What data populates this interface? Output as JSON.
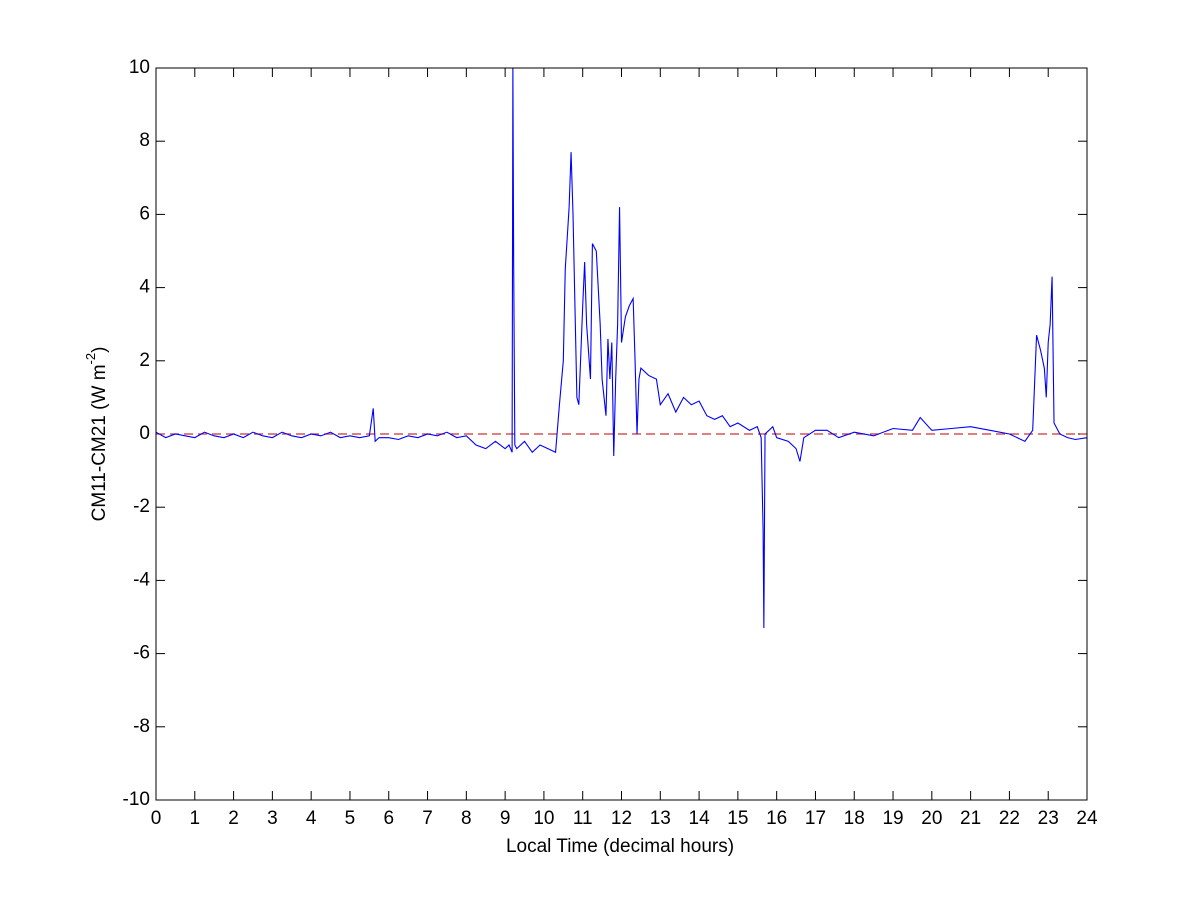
{
  "chart_data": {
    "type": "line",
    "xlabel": "Local Time (decimal hours)",
    "ylabel": {
      "text": "CM11-CM21 (W m",
      "superscript": "-2",
      "suffix": ")"
    },
    "xlim": [
      0,
      24
    ],
    "xticks": [
      0,
      1,
      2,
      3,
      4,
      5,
      6,
      7,
      8,
      9,
      10,
      11,
      12,
      13,
      14,
      15,
      16,
      17,
      18,
      19,
      20,
      21,
      22,
      23,
      24
    ],
    "ylim": [
      -10,
      10
    ],
    "yticks": [
      -10,
      -8,
      -6,
      -4,
      -2,
      0,
      2,
      4,
      6,
      8,
      10
    ],
    "grid": false,
    "reference_line": {
      "value": 0,
      "color": "#cc3333",
      "dash": true
    },
    "series": [
      {
        "name": "CM11-CM21",
        "color": "#0000ff",
        "x": [
          0,
          0.25,
          0.5,
          0.75,
          1,
          1.25,
          1.5,
          1.75,
          2,
          2.25,
          2.5,
          2.75,
          3,
          3.25,
          3.5,
          3.75,
          4,
          4.25,
          4.5,
          4.75,
          5,
          5.25,
          5.5,
          5.6,
          5.65,
          5.75,
          6,
          6.25,
          6.5,
          6.75,
          7,
          7.25,
          7.5,
          7.75,
          8,
          8.25,
          8.5,
          8.75,
          9,
          9.1,
          9.18,
          9.2,
          9.22,
          9.25,
          9.3,
          9.5,
          9.7,
          9.9,
          10.1,
          10.3,
          10.4,
          10.5,
          10.55,
          10.65,
          10.7,
          10.75,
          10.8,
          10.85,
          10.9,
          11,
          11.05,
          11.1,
          11.2,
          11.25,
          11.35,
          11.45,
          11.5,
          11.6,
          11.65,
          11.7,
          11.75,
          11.8,
          11.85,
          11.9,
          11.95,
          12,
          12.1,
          12.2,
          12.3,
          12.35,
          12.4,
          12.45,
          12.5,
          12.7,
          12.9,
          13,
          13.2,
          13.4,
          13.6,
          13.8,
          14,
          14.2,
          14.4,
          14.6,
          14.8,
          15,
          15.3,
          15.5,
          15.6,
          15.65,
          15.67,
          15.7,
          15.9,
          16,
          16.3,
          16.5,
          16.6,
          16.7,
          17,
          17.3,
          17.6,
          18,
          18.5,
          19,
          19.5,
          19.7,
          20,
          20.5,
          21,
          21.5,
          22,
          22.4,
          22.6,
          22.7,
          22.8,
          22.9,
          22.95,
          23,
          23.05,
          23.1,
          23.15,
          23.3,
          23.5,
          23.7,
          24
        ],
        "values": [
          0.05,
          -0.1,
          0,
          -0.05,
          -0.1,
          0.05,
          -0.05,
          -0.1,
          0,
          -0.1,
          0.05,
          -0.05,
          -0.1,
          0.05,
          -0.05,
          -0.1,
          0,
          -0.05,
          0.05,
          -0.1,
          -0.05,
          -0.1,
          -0.05,
          0.7,
          -0.2,
          -0.1,
          -0.1,
          -0.15,
          -0.05,
          -0.1,
          0,
          -0.05,
          0.05,
          -0.1,
          -0.05,
          -0.3,
          -0.4,
          -0.2,
          -0.4,
          -0.3,
          -0.5,
          10,
          4.7,
          -0.3,
          -0.4,
          -0.2,
          -0.5,
          -0.3,
          -0.4,
          -0.5,
          0.8,
          2,
          4.5,
          6.2,
          7.7,
          6,
          3.5,
          1,
          0.8,
          3.5,
          4.7,
          3,
          1.5,
          5.2,
          5,
          3,
          1.5,
          0.5,
          2.6,
          1.5,
          2.5,
          -0.6,
          1.5,
          3,
          6.2,
          2.5,
          3.2,
          3.5,
          3.7,
          2,
          0,
          1.5,
          1.8,
          1.6,
          1.5,
          0.8,
          1.1,
          0.6,
          1,
          0.8,
          0.9,
          0.5,
          0.4,
          0.5,
          0.2,
          0.3,
          0.1,
          0.2,
          -0.1,
          -2.6,
          -5.3,
          0,
          0.2,
          -0.1,
          -0.2,
          -0.4,
          -0.75,
          -0.1,
          0.1,
          0.1,
          -0.1,
          0.05,
          -0.05,
          0.15,
          0.1,
          0.45,
          0.1,
          0.15,
          0.2,
          0.1,
          0,
          -0.2,
          0.1,
          2.7,
          2.3,
          1.8,
          1,
          2.5,
          3,
          4.3,
          0.3,
          0,
          -0.1,
          -0.15,
          -0.1
        ]
      }
    ]
  }
}
